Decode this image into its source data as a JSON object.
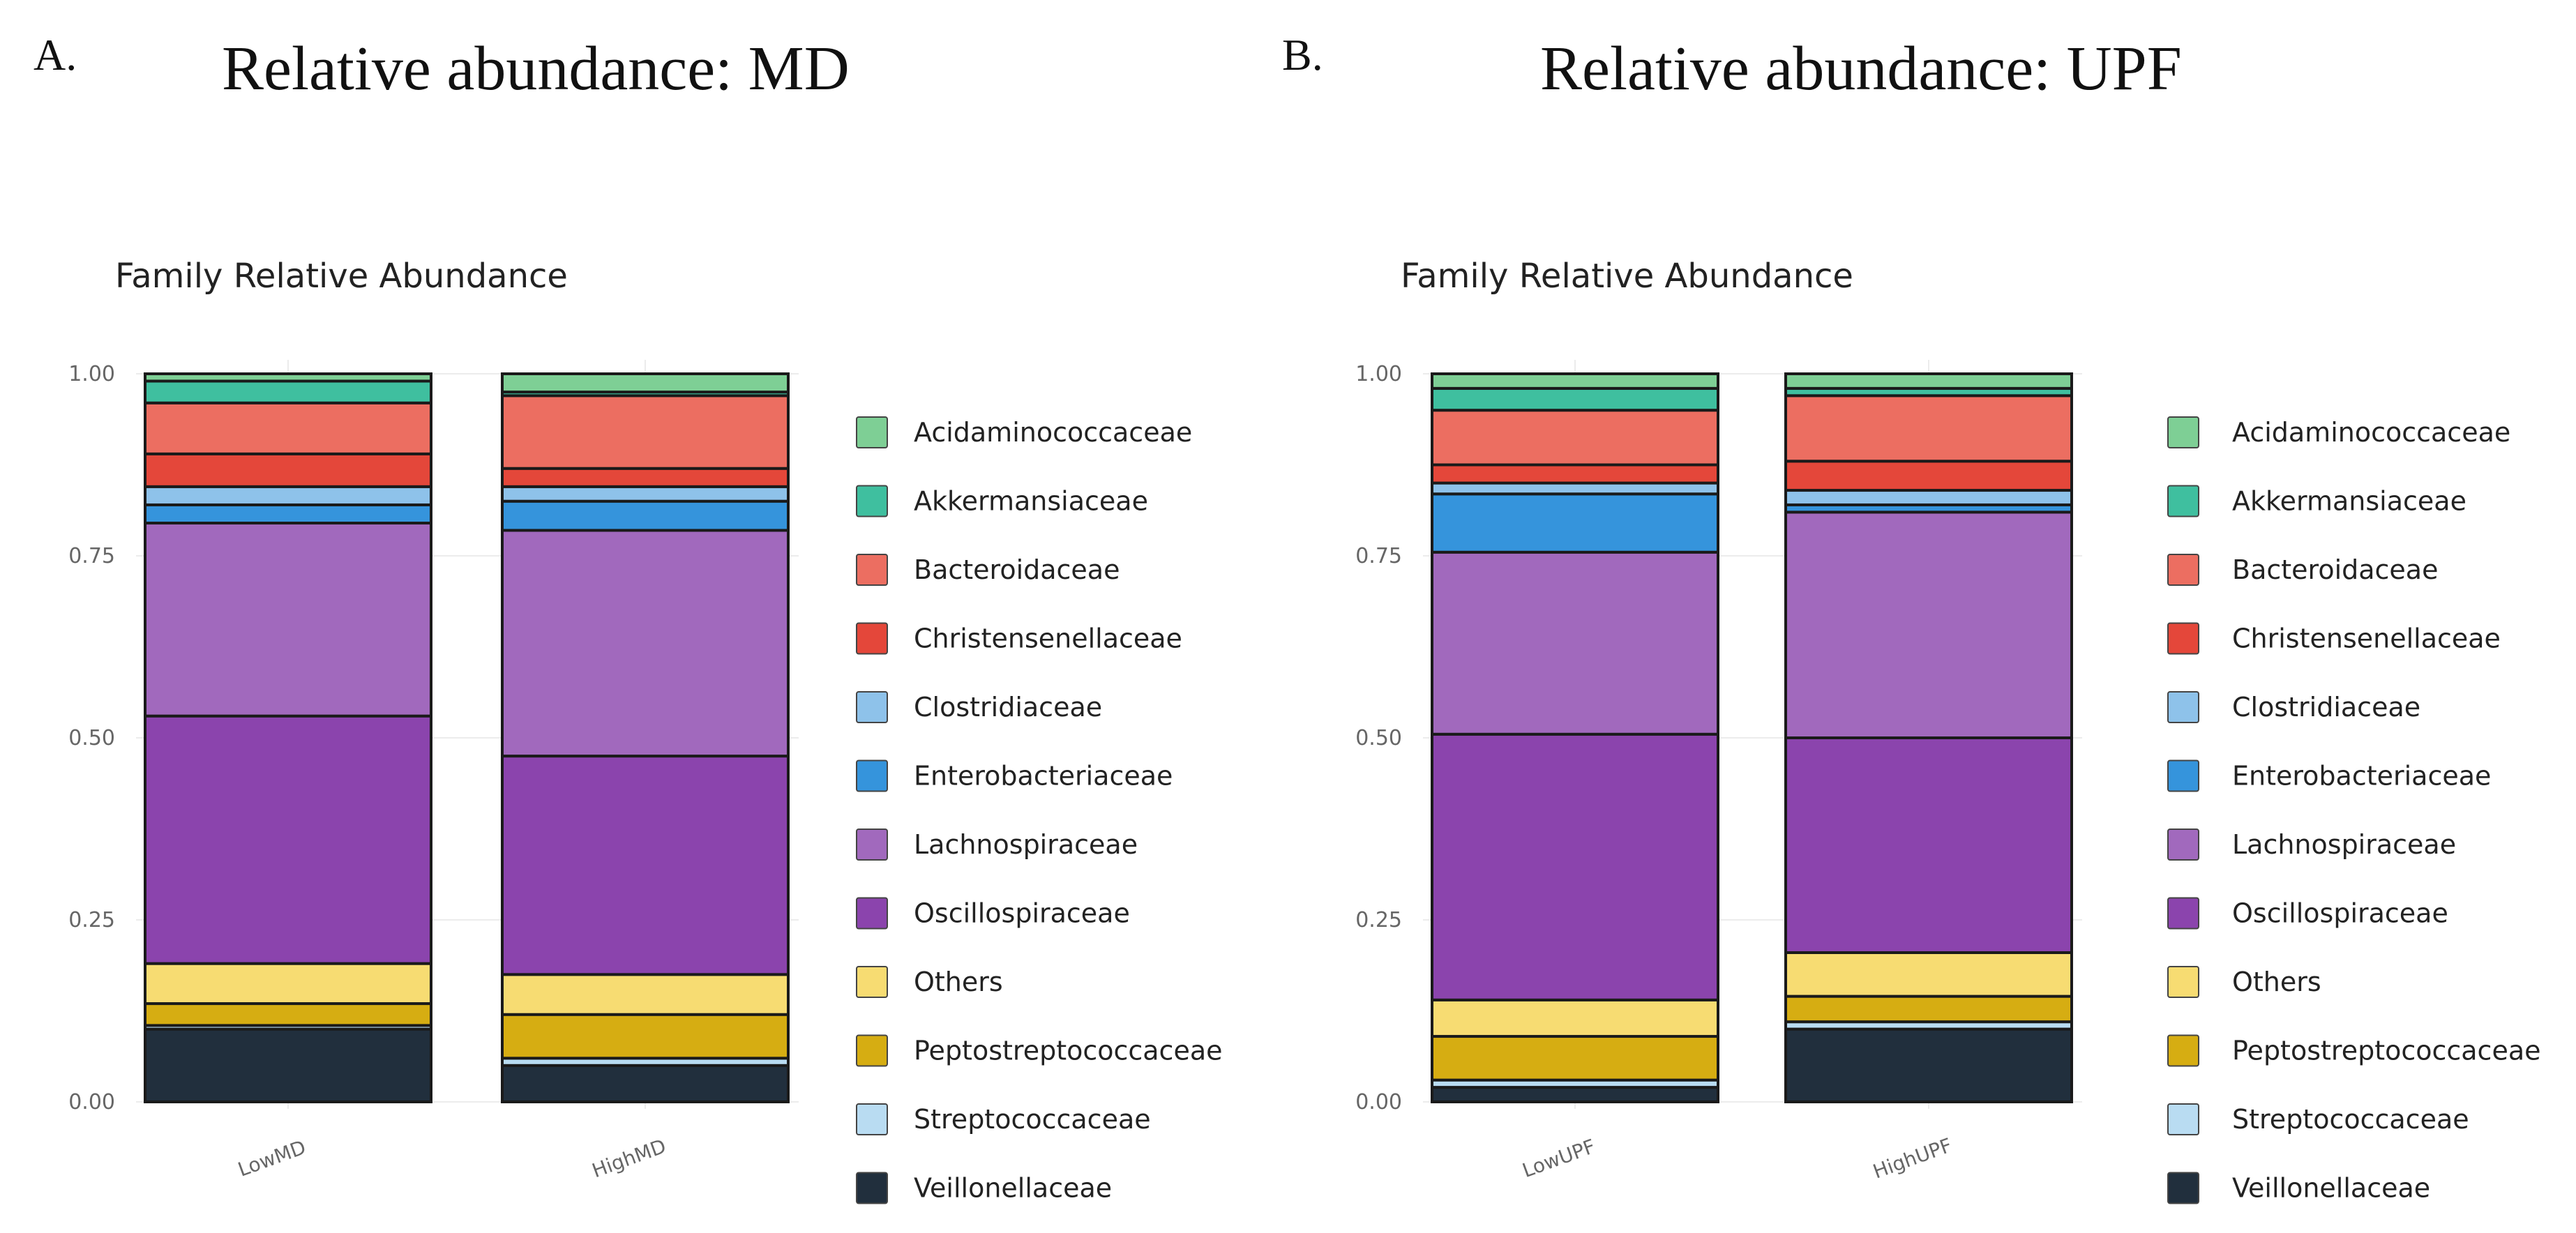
{
  "panels": [
    {
      "letter": "A.",
      "title": "Relative abundance: MD"
    },
    {
      "letter": "B.",
      "title": "Relative abundance: UPF"
    }
  ],
  "legend": {
    "order": [
      "Acidaminococcaceae",
      "Akkermansiaceae",
      "Bacteroidaceae",
      "Christensenellaceae",
      "Clostridiaceae",
      "Enterobacteriaceae",
      "Lachnospiraceae",
      "Oscillospiraceae",
      "Others",
      "Peptostreptococcaceae",
      "Streptococcaceae",
      "Veillonellaceae"
    ],
    "colors": {
      "Acidaminococcaceae": "#7ecf95",
      "Akkermansiaceae": "#3fbf9f",
      "Bacteroidaceae": "#ec6e61",
      "Christensenellaceae": "#e4473a",
      "Clostridiaceae": "#8ec2ea",
      "Enterobacteriaceae": "#3594dc",
      "Lachnospiraceae": "#a169bd",
      "Oscillospiraceae": "#8b44ad",
      "Others": "#f7dc72",
      "Peptostreptococcaceae": "#d6ad12",
      "Streptococcaceae": "#b9dcf2",
      "Veillonellaceae": "#212f3d"
    }
  },
  "chart_data": [
    {
      "type": "bar",
      "stacked": true,
      "title": "Family Relative Abundance",
      "categories": [
        "LowMD",
        "HighMD"
      ],
      "ylim": [
        0,
        1
      ],
      "yticks": [
        "0.00",
        "0.25",
        "0.50",
        "0.75",
        "1.00"
      ],
      "series": [
        {
          "name": "Veillonellaceae",
          "values": [
            0.1,
            0.05
          ]
        },
        {
          "name": "Streptococcaceae",
          "values": [
            0.005,
            0.01
          ]
        },
        {
          "name": "Peptostreptococcaceae",
          "values": [
            0.03,
            0.06
          ]
        },
        {
          "name": "Others",
          "values": [
            0.055,
            0.055
          ]
        },
        {
          "name": "Oscillospiraceae",
          "values": [
            0.34,
            0.3
          ]
        },
        {
          "name": "Lachnospiraceae",
          "values": [
            0.265,
            0.31
          ]
        },
        {
          "name": "Enterobacteriaceae",
          "values": [
            0.025,
            0.04
          ]
        },
        {
          "name": "Clostridiaceae",
          "values": [
            0.025,
            0.02
          ]
        },
        {
          "name": "Christensenellaceae",
          "values": [
            0.045,
            0.025
          ]
        },
        {
          "name": "Bacteroidaceae",
          "values": [
            0.07,
            0.1
          ]
        },
        {
          "name": "Akkermansiaceae",
          "values": [
            0.03,
            0.005
          ]
        },
        {
          "name": "Acidaminococcaceae",
          "values": [
            0.01,
            0.025
          ]
        }
      ]
    },
    {
      "type": "bar",
      "stacked": true,
      "title": "Family Relative Abundance",
      "categories": [
        "LowUPF",
        "HighUPF"
      ],
      "ylim": [
        0,
        1
      ],
      "yticks": [
        "0.00",
        "0.25",
        "0.50",
        "0.75",
        "1.00"
      ],
      "series": [
        {
          "name": "Veillonellaceae",
          "values": [
            0.02,
            0.1
          ]
        },
        {
          "name": "Streptococcaceae",
          "values": [
            0.01,
            0.01
          ]
        },
        {
          "name": "Peptostreptococcaceae",
          "values": [
            0.06,
            0.035
          ]
        },
        {
          "name": "Others",
          "values": [
            0.05,
            0.06
          ]
        },
        {
          "name": "Oscillospiraceae",
          "values": [
            0.365,
            0.295
          ]
        },
        {
          "name": "Lachnospiraceae",
          "values": [
            0.25,
            0.31
          ]
        },
        {
          "name": "Enterobacteriaceae",
          "values": [
            0.08,
            0.01
          ]
        },
        {
          "name": "Clostridiaceae",
          "values": [
            0.015,
            0.02
          ]
        },
        {
          "name": "Christensenellaceae",
          "values": [
            0.025,
            0.04
          ]
        },
        {
          "name": "Bacteroidaceae",
          "values": [
            0.075,
            0.09
          ]
        },
        {
          "name": "Akkermansiaceae",
          "values": [
            0.03,
            0.01
          ]
        },
        {
          "name": "Acidaminococcaceae",
          "values": [
            0.02,
            0.02
          ]
        }
      ]
    }
  ]
}
